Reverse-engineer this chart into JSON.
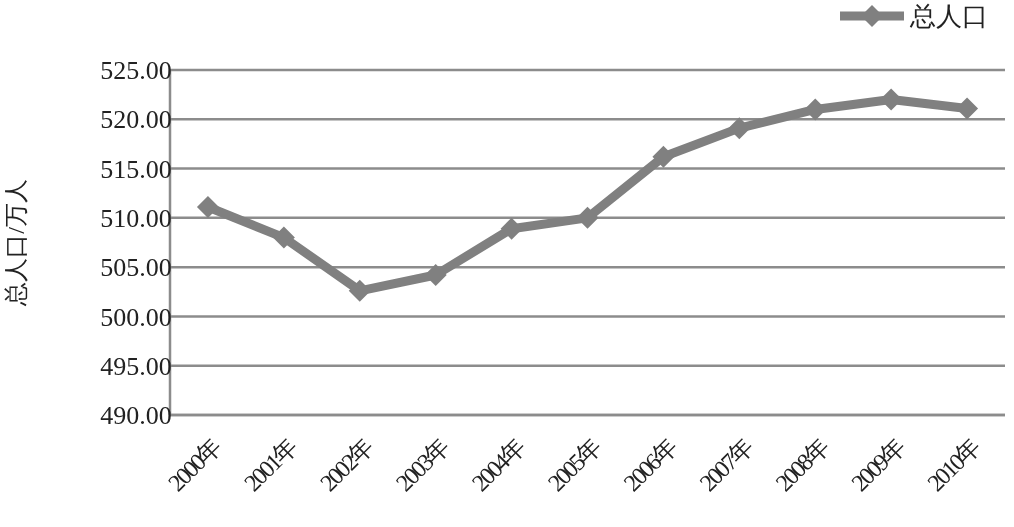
{
  "chart_data": {
    "type": "line",
    "ylabel": "总人口/万人",
    "categories": [
      "2000年",
      "2001年",
      "2002年",
      "2003年",
      "2004年",
      "2005年",
      "2006年",
      "2007年",
      "2008年",
      "2009年",
      "2010年"
    ],
    "series": [
      {
        "name": "总人口",
        "color": "#808080",
        "values": [
          511.1,
          508.0,
          502.6,
          504.2,
          508.9,
          510.0,
          516.2,
          519.1,
          521.0,
          522.0,
          521.1
        ]
      }
    ],
    "ylim": [
      490,
      525
    ],
    "yticks": [
      {
        "value": 490,
        "label": "490.00"
      },
      {
        "value": 495,
        "label": "495.00"
      },
      {
        "value": 500,
        "label": "500.00"
      },
      {
        "value": 505,
        "label": "505.00"
      },
      {
        "value": 510,
        "label": "510.00"
      },
      {
        "value": 515,
        "label": "515.00"
      },
      {
        "value": 520,
        "label": "520.00"
      },
      {
        "value": 525,
        "label": "525.00"
      }
    ],
    "grid": "y",
    "legend": "top right",
    "marker": "diamond",
    "line_style": "solid"
  }
}
